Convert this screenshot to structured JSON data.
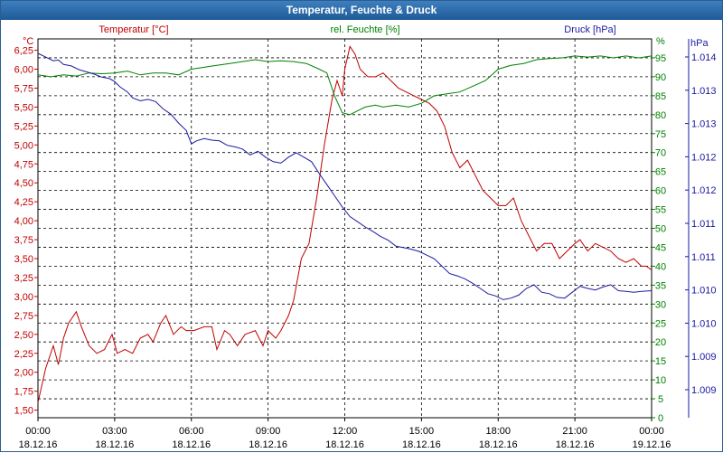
{
  "window": {
    "title": "Temperatur, Feuchte & Druck"
  },
  "chart_data": {
    "type": "line",
    "title": "Temperatur, Feuchte & Druck",
    "grid": true,
    "x_ticks": [
      {
        "time": "00:00",
        "date": "18.12.16",
        "h": 0
      },
      {
        "time": "03:00",
        "date": "18.12.16",
        "h": 3
      },
      {
        "time": "06:00",
        "date": "18.12.16",
        "h": 6
      },
      {
        "time": "09:00",
        "date": "18.12.16",
        "h": 9
      },
      {
        "time": "12:00",
        "date": "18.12.16",
        "h": 12
      },
      {
        "time": "15:00",
        "date": "18.12.16",
        "h": 15
      },
      {
        "time": "18:00",
        "date": "18.12.16",
        "h": 18
      },
      {
        "time": "21:00",
        "date": "18.12.16",
        "h": 21
      },
      {
        "time": "00:00",
        "date": "19.12.16",
        "h": 24
      }
    ],
    "axes": {
      "temperature": {
        "unit": "°C",
        "range": [
          1.4,
          6.4
        ],
        "ticks": [
          "6,25",
          "6,00",
          "5,75",
          "5,50",
          "5,25",
          "5,00",
          "4,75",
          "4,50",
          "4,25",
          "4,00",
          "3,75",
          "3,50",
          "3,25",
          "3,00",
          "2,75",
          "2,50",
          "2,25",
          "2,00",
          "1,75",
          "1,50"
        ],
        "color": "#c00000"
      },
      "humidity": {
        "unit": "%",
        "range": [
          0,
          100
        ],
        "ticks": [
          "95",
          "90",
          "85",
          "80",
          "75",
          "70",
          "65",
          "60",
          "55",
          "50",
          "45",
          "40",
          "35",
          "30",
          "25",
          "20",
          "15",
          "10",
          "5",
          "0"
        ],
        "color": "#008000"
      },
      "pressure": {
        "unit": "hPa",
        "ticks": [
          "1.014",
          "1.013",
          "1.013",
          "1.012",
          "1.012",
          "1.011",
          "1.011",
          "1.010",
          "1.010",
          "1.009",
          "1.009"
        ],
        "color": "#1a1aa0"
      }
    },
    "series": [
      {
        "name": "Temperatur [°C]",
        "axis": "temperature",
        "color": "#c00000",
        "x": [
          0,
          0.3,
          0.6,
          0.8,
          1.0,
          1.2,
          1.5,
          1.7,
          2.0,
          2.3,
          2.6,
          2.9,
          3.1,
          3.4,
          3.7,
          4.0,
          4.3,
          4.5,
          4.8,
          5.0,
          5.3,
          5.6,
          5.8,
          6.1,
          6.5,
          6.8,
          7.0,
          7.3,
          7.5,
          7.8,
          8.1,
          8.5,
          8.8,
          9.0,
          9.3,
          9.5,
          9.8,
          10.0,
          10.3,
          10.6,
          10.9,
          11.2,
          11.5,
          11.7,
          11.9,
          12.0,
          12.2,
          12.4,
          12.6,
          12.9,
          13.2,
          13.5,
          13.8,
          14.1,
          14.4,
          14.7,
          15.0,
          15.3,
          15.6,
          15.9,
          16.2,
          16.5,
          16.8,
          17.1,
          17.4,
          17.7,
          18.0,
          18.3,
          18.6,
          18.9,
          19.2,
          19.5,
          19.8,
          20.1,
          20.4,
          20.7,
          21.0,
          21.2,
          21.5,
          21.8,
          22.1,
          22.4,
          22.7,
          23.0,
          23.3,
          23.6,
          23.8,
          24.0
        ],
        "y": [
          1.6,
          2.05,
          2.35,
          2.1,
          2.45,
          2.65,
          2.8,
          2.6,
          2.35,
          2.25,
          2.3,
          2.5,
          2.25,
          2.3,
          2.25,
          2.45,
          2.5,
          2.4,
          2.65,
          2.75,
          2.5,
          2.6,
          2.55,
          2.55,
          2.6,
          2.6,
          2.3,
          2.55,
          2.5,
          2.35,
          2.5,
          2.55,
          2.35,
          2.55,
          2.45,
          2.55,
          2.75,
          2.95,
          3.5,
          3.7,
          4.3,
          5.0,
          5.6,
          5.85,
          5.65,
          6.0,
          6.3,
          6.2,
          6.0,
          5.9,
          5.9,
          5.95,
          5.85,
          5.75,
          5.7,
          5.65,
          5.6,
          5.55,
          5.45,
          5.25,
          4.9,
          4.7,
          4.8,
          4.6,
          4.4,
          4.3,
          4.2,
          4.2,
          4.3,
          4.0,
          3.8,
          3.6,
          3.7,
          3.7,
          3.5,
          3.6,
          3.7,
          3.75,
          3.6,
          3.7,
          3.65,
          3.6,
          3.5,
          3.45,
          3.5,
          3.4,
          3.4,
          3.35
        ]
      },
      {
        "name": "rel. Feuchte [%]",
        "axis": "humidity",
        "color": "#008000",
        "x": [
          0,
          0.5,
          1.0,
          1.5,
          2.0,
          2.5,
          3.0,
          3.5,
          4.0,
          4.5,
          5.0,
          5.5,
          6.0,
          6.5,
          7.0,
          7.5,
          8.0,
          8.5,
          9.0,
          9.5,
          10.0,
          10.5,
          11.0,
          11.3,
          11.6,
          11.9,
          12.2,
          12.5,
          12.8,
          13.2,
          13.5,
          14.0,
          14.5,
          15.0,
          15.5,
          16.0,
          16.5,
          17.0,
          17.5,
          18.0,
          18.5,
          19.0,
          19.5,
          20.0,
          20.5,
          21.0,
          21.5,
          22.0,
          22.5,
          23.0,
          23.5,
          24.0
        ],
        "y": [
          90.5,
          90,
          90.5,
          90.2,
          91,
          90.8,
          91,
          91.5,
          90.5,
          91,
          91,
          90.5,
          92,
          92.5,
          93,
          93.5,
          94,
          94.5,
          94,
          94.2,
          94,
          93.5,
          92,
          91,
          85,
          80.5,
          80,
          81,
          82,
          82.5,
          82,
          82.5,
          82,
          83,
          85,
          85.5,
          86,
          87.5,
          89,
          92,
          93,
          93.5,
          94.5,
          94.8,
          95,
          95.5,
          95.2,
          95.5,
          95,
          95.5,
          95,
          95.5
        ]
      },
      {
        "name": "Druck [hPa]",
        "axis": "pressure",
        "color": "#1a1aa0",
        "x": [
          0,
          0.3,
          0.6,
          0.8,
          1.0,
          1.3,
          1.6,
          1.9,
          2.2,
          2.5,
          2.8,
          3.0,
          3.2,
          3.5,
          3.7,
          4.0,
          4.3,
          4.6,
          4.9,
          5.2,
          5.5,
          5.8,
          6.0,
          6.2,
          6.5,
          6.8,
          7.1,
          7.4,
          7.7,
          8.0,
          8.3,
          8.6,
          8.9,
          9.2,
          9.5,
          9.8,
          10.1,
          10.4,
          10.7,
          11.0,
          11.3,
          11.6,
          11.9,
          12.2,
          12.5,
          12.8,
          13.1,
          13.4,
          13.7,
          14.0,
          14.3,
          14.6,
          14.9,
          15.2,
          15.5,
          15.8,
          16.1,
          16.4,
          16.7,
          17.0,
          17.3,
          17.6,
          17.9,
          18.2,
          18.5,
          18.8,
          19.1,
          19.4,
          19.7,
          20.0,
          20.3,
          20.6,
          20.9,
          21.2,
          21.5,
          21.8,
          22.1,
          22.4,
          22.7,
          23.0,
          23.3,
          23.6,
          24.0
        ],
        "y": [
          1013.62,
          1013.57,
          1013.52,
          1013.53,
          1013.47,
          1013.45,
          1013.4,
          1013.37,
          1013.34,
          1013.3,
          1013.28,
          1013.24,
          1013.17,
          1013.1,
          1013.02,
          1012.98,
          1013.0,
          1012.97,
          1012.87,
          1012.8,
          1012.68,
          1012.58,
          1012.4,
          1012.44,
          1012.47,
          1012.45,
          1012.44,
          1012.38,
          1012.36,
          1012.33,
          1012.25,
          1012.3,
          1012.22,
          1012.16,
          1012.14,
          1012.22,
          1012.28,
          1012.22,
          1012.16,
          1012.0,
          1011.85,
          1011.7,
          1011.55,
          1011.42,
          1011.35,
          1011.28,
          1011.22,
          1011.15,
          1011.1,
          1011.02,
          1011.0,
          1010.98,
          1010.95,
          1010.9,
          1010.85,
          1010.75,
          1010.65,
          1010.62,
          1010.58,
          1010.52,
          1010.45,
          1010.38,
          1010.35,
          1010.3,
          1010.32,
          1010.36,
          1010.45,
          1010.5,
          1010.4,
          1010.38,
          1010.33,
          1010.32,
          1010.4,
          1010.48,
          1010.45,
          1010.43,
          1010.47,
          1010.5,
          1010.42,
          1010.41,
          1010.4,
          1010.41,
          1010.42
        ]
      }
    ]
  }
}
